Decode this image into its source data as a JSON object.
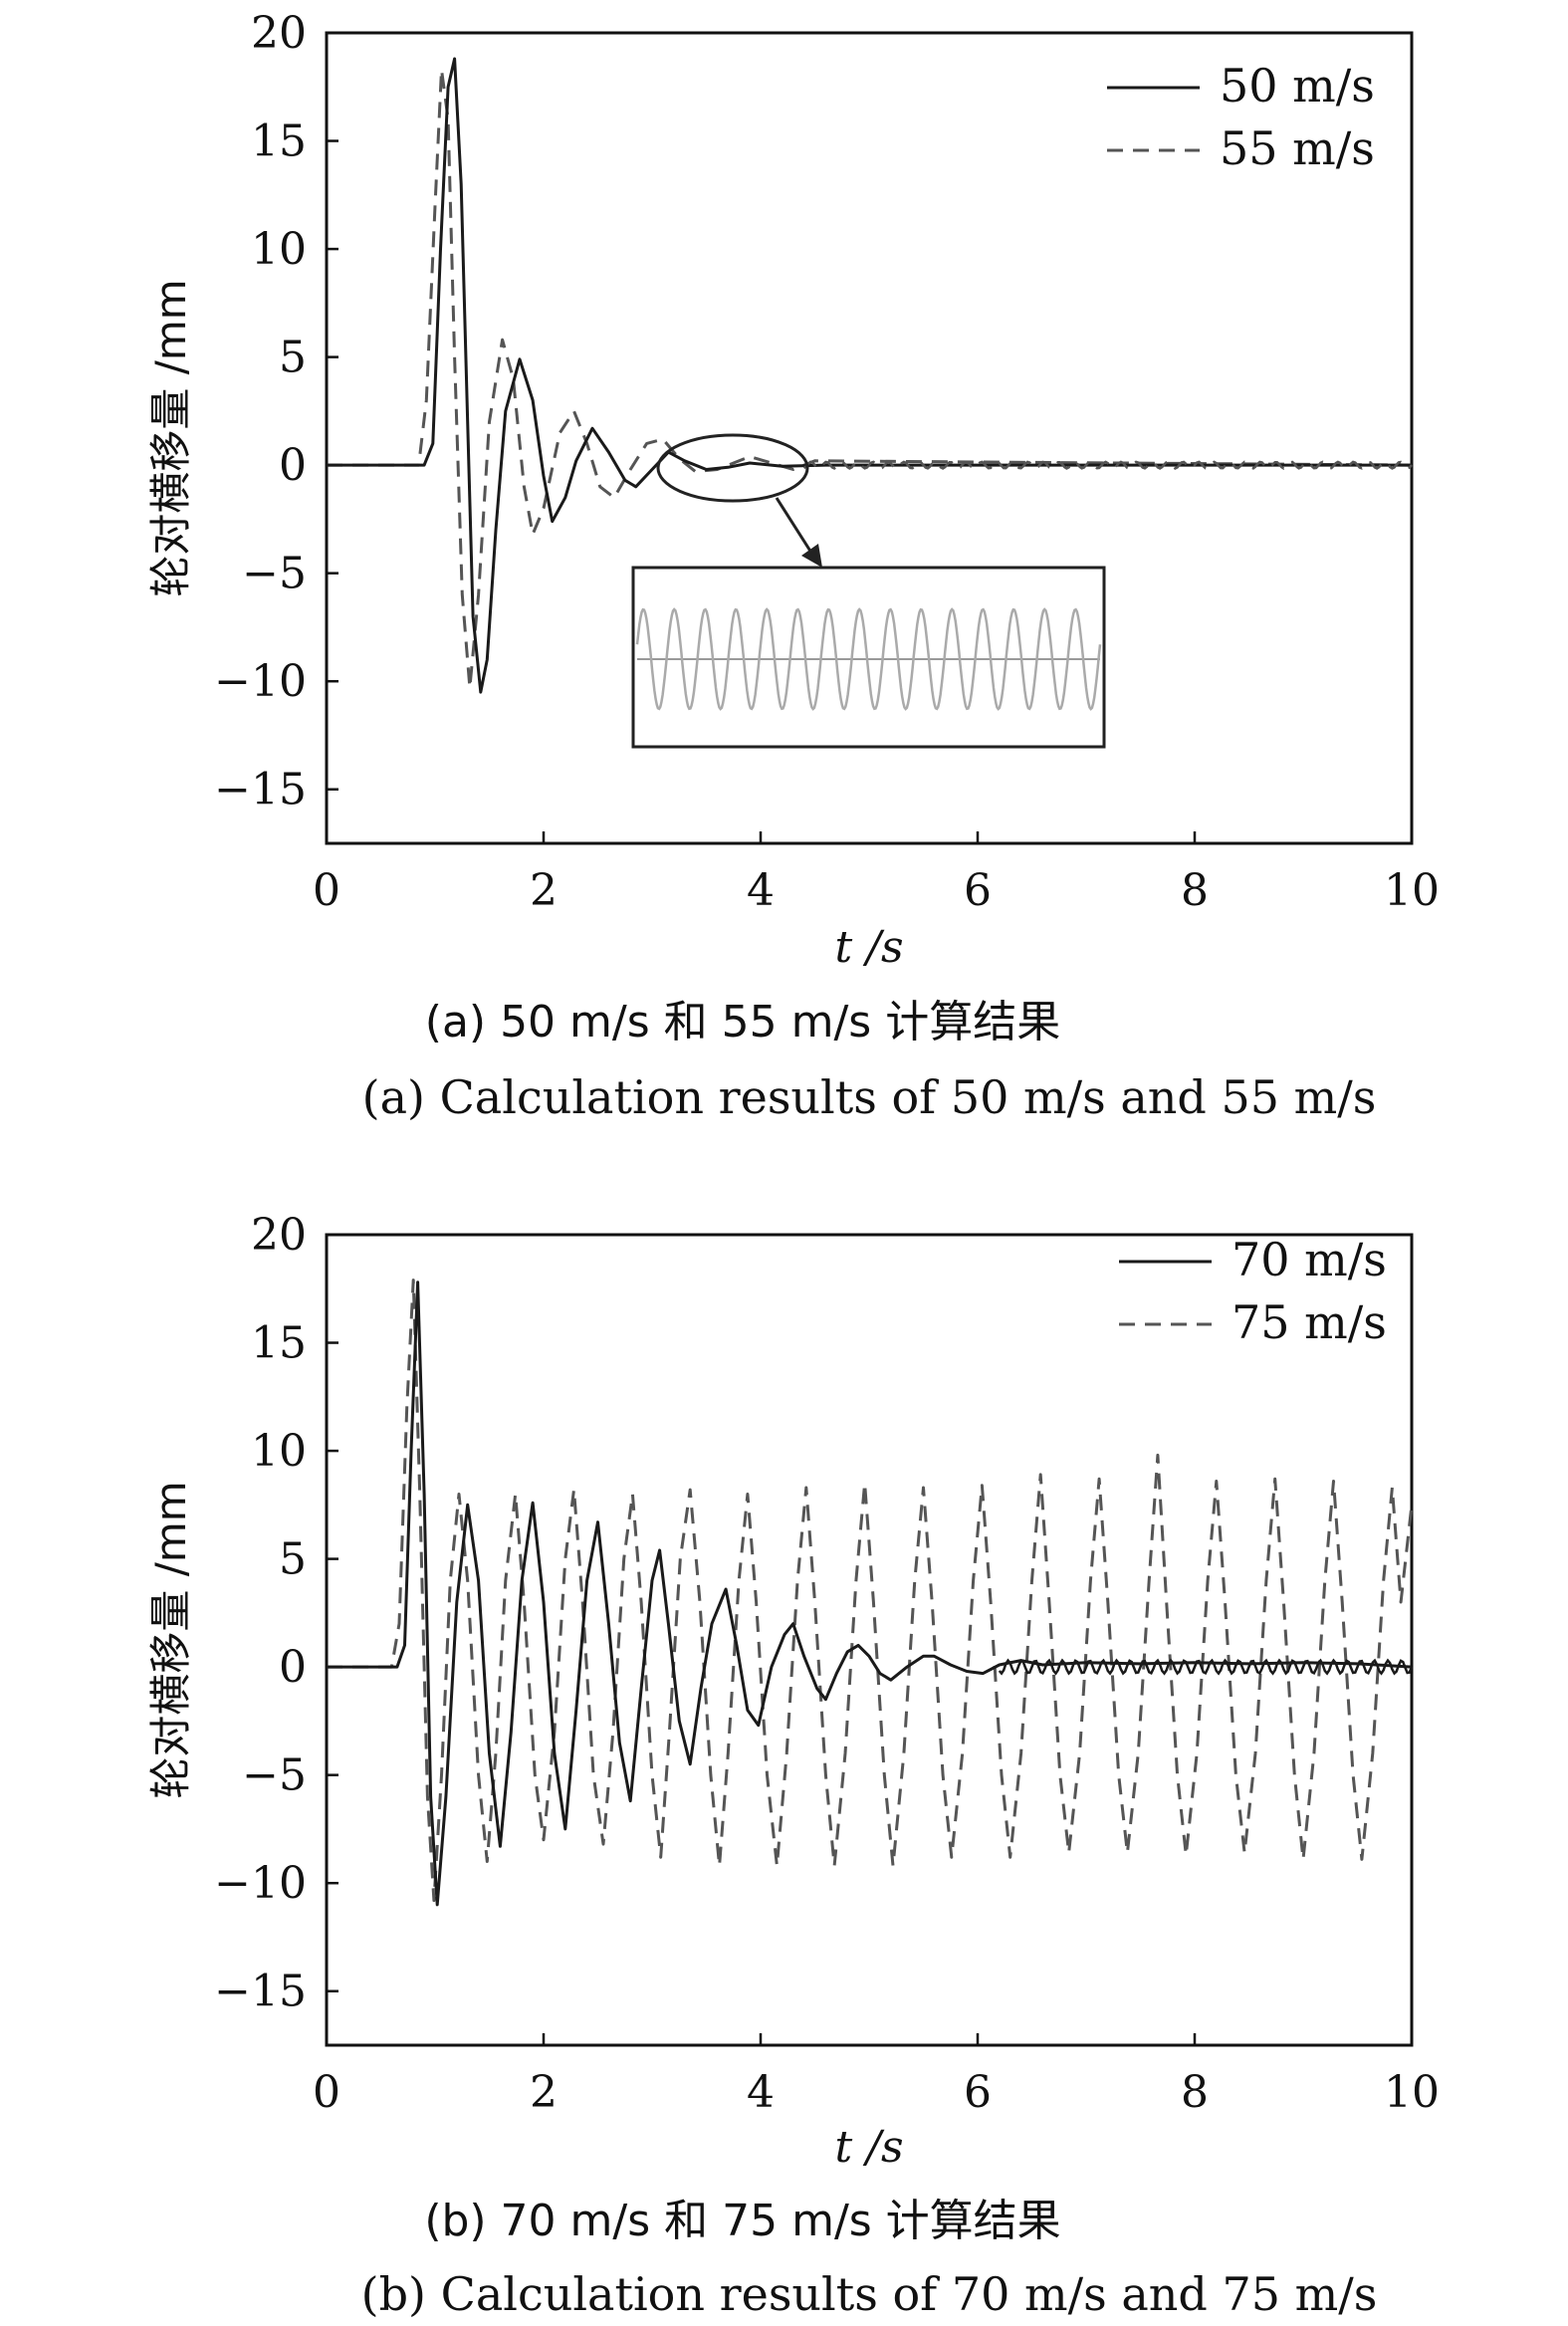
{
  "chart_data": [
    {
      "type": "line",
      "xlabel": "t /s",
      "ylabel": "轮对横移量 /mm",
      "xlim": [
        0,
        10
      ],
      "ylim": [
        -17.5,
        20
      ],
      "xticks": [
        0,
        2,
        4,
        6,
        8,
        10
      ],
      "yticks": [
        -15,
        -10,
        -5,
        0,
        5,
        10,
        15,
        20
      ],
      "legend_position": "top-right",
      "caption_cn": "(a) 50 m/s 和 55 m/s 计算结果",
      "caption_en": "(a) Calculation results of 50 m/s and 55 m/s",
      "grid": false,
      "inset": true,
      "series": [
        {
          "name": "50 m/s",
          "style": "solid",
          "color": "#1a1a1a",
          "points": [
            [
              0,
              0
            ],
            [
              0.9,
              0
            ],
            [
              0.98,
              1
            ],
            [
              1.05,
              10
            ],
            [
              1.12,
              17.5
            ],
            [
              1.18,
              18.8
            ],
            [
              1.24,
              13
            ],
            [
              1.3,
              2
            ],
            [
              1.35,
              -7
            ],
            [
              1.42,
              -10.5
            ],
            [
              1.48,
              -9
            ],
            [
              1.56,
              -3
            ],
            [
              1.65,
              2.5
            ],
            [
              1.78,
              4.9
            ],
            [
              1.9,
              3
            ],
            [
              2.0,
              -0.5
            ],
            [
              2.08,
              -2.6
            ],
            [
              2.2,
              -1.5
            ],
            [
              2.3,
              0.2
            ],
            [
              2.45,
              1.7
            ],
            [
              2.6,
              0.6
            ],
            [
              2.75,
              -0.7
            ],
            [
              2.85,
              -1
            ],
            [
              3.0,
              -0.2
            ],
            [
              3.15,
              0.6
            ],
            [
              3.3,
              0.2
            ],
            [
              3.5,
              -0.2
            ],
            [
              3.7,
              -0.1
            ],
            [
              3.9,
              0.1
            ],
            [
              4.2,
              -0.05
            ],
            [
              4.6,
              0
            ],
            [
              10,
              0
            ]
          ]
        },
        {
          "name": "55 m/s",
          "style": "dashed",
          "color": "#555555",
          "points": [
            [
              0,
              0
            ],
            [
              0.85,
              0
            ],
            [
              0.92,
              3
            ],
            [
              1.0,
              12
            ],
            [
              1.06,
              18.3
            ],
            [
              1.12,
              16
            ],
            [
              1.18,
              5
            ],
            [
              1.25,
              -6
            ],
            [
              1.32,
              -10.3
            ],
            [
              1.4,
              -6
            ],
            [
              1.5,
              2
            ],
            [
              1.62,
              5.8
            ],
            [
              1.72,
              4
            ],
            [
              1.82,
              -1
            ],
            [
              1.9,
              -3.2
            ],
            [
              2.0,
              -2
            ],
            [
              2.15,
              1.5
            ],
            [
              2.28,
              2.5
            ],
            [
              2.4,
              1
            ],
            [
              2.52,
              -1
            ],
            [
              2.65,
              -1.5
            ],
            [
              2.8,
              -0.2
            ],
            [
              2.95,
              1.0
            ],
            [
              3.1,
              1.2
            ],
            [
              3.25,
              0.3
            ],
            [
              3.4,
              -0.3
            ],
            [
              3.6,
              -0.2
            ],
            [
              3.75,
              0.1
            ],
            [
              3.9,
              0.4
            ],
            [
              4.1,
              0.1
            ],
            [
              4.3,
              -0.2
            ],
            [
              4.5,
              0.2
            ],
            [
              10,
              0
            ]
          ]
        }
      ]
    },
    {
      "type": "line",
      "xlabel": "t /s",
      "ylabel": "轮对横移量 /mm",
      "xlim": [
        0,
        10
      ],
      "ylim": [
        -17.5,
        20
      ],
      "xticks": [
        0,
        2,
        4,
        6,
        8,
        10
      ],
      "yticks": [
        -15,
        -10,
        -5,
        0,
        5,
        10,
        15,
        20
      ],
      "legend_position": "top-right",
      "caption_cn": "(b) 70 m/s 和 75 m/s 计算结果",
      "caption_en": "(b) Calculation results of 70 m/s and 75 m/s",
      "grid": false,
      "series": [
        {
          "name": "70 m/s",
          "style": "solid",
          "color": "#1a1a1a",
          "points": [
            [
              0,
              0
            ],
            [
              0.65,
              0
            ],
            [
              0.72,
              1
            ],
            [
              0.78,
              10
            ],
            [
              0.84,
              17.8
            ],
            [
              0.9,
              8
            ],
            [
              0.96,
              -6
            ],
            [
              1.02,
              -11
            ],
            [
              1.1,
              -6
            ],
            [
              1.2,
              3
            ],
            [
              1.3,
              7.5
            ],
            [
              1.4,
              4
            ],
            [
              1.5,
              -4
            ],
            [
              1.6,
              -8.3
            ],
            [
              1.7,
              -3
            ],
            [
              1.8,
              4
            ],
            [
              1.9,
              7.6
            ],
            [
              2.0,
              3
            ],
            [
              2.1,
              -4
            ],
            [
              2.2,
              -7.5
            ],
            [
              2.3,
              -2
            ],
            [
              2.4,
              4
            ],
            [
              2.5,
              6.7
            ],
            [
              2.6,
              2
            ],
            [
              2.7,
              -3.5
            ],
            [
              2.8,
              -6.2
            ],
            [
              2.9,
              -1
            ],
            [
              3.0,
              4
            ],
            [
              3.07,
              5.4
            ],
            [
              3.15,
              2
            ],
            [
              3.25,
              -2.5
            ],
            [
              3.35,
              -4.5
            ],
            [
              3.45,
              -1
            ],
            [
              3.55,
              2
            ],
            [
              3.68,
              3.6
            ],
            [
              3.78,
              1
            ],
            [
              3.88,
              -2
            ],
            [
              3.98,
              -2.7
            ],
            [
              4.1,
              0
            ],
            [
              4.22,
              1.5
            ],
            [
              4.3,
              2
            ],
            [
              4.4,
              0.5
            ],
            [
              4.52,
              -1
            ],
            [
              4.6,
              -1.5
            ],
            [
              4.7,
              -0.3
            ],
            [
              4.8,
              0.7
            ],
            [
              4.9,
              1
            ],
            [
              5.0,
              0.5
            ],
            [
              5.1,
              -0.3
            ],
            [
              5.2,
              -0.6
            ],
            [
              5.35,
              0
            ],
            [
              5.5,
              0.5
            ],
            [
              5.6,
              0.5
            ],
            [
              5.75,
              0.1
            ],
            [
              5.9,
              -0.2
            ],
            [
              6.05,
              -0.3
            ],
            [
              6.2,
              0.1
            ],
            [
              6.4,
              0.3
            ],
            [
              6.6,
              0.1
            ],
            [
              7.0,
              0.2
            ],
            [
              7.5,
              0.15
            ],
            [
              8.0,
              0.2
            ],
            [
              8.5,
              0.15
            ],
            [
              9.0,
              0.2
            ],
            [
              9.5,
              0.15
            ],
            [
              10,
              0
            ]
          ]
        },
        {
          "name": "75 m/s",
          "style": "dashed",
          "color": "#555555",
          "points": [
            [
              0,
              0
            ],
            [
              0.6,
              0
            ],
            [
              0.67,
              2
            ],
            [
              0.74,
              12
            ],
            [
              0.8,
              17.9
            ],
            [
              0.86,
              8
            ],
            [
              0.93,
              -6
            ],
            [
              0.99,
              -10.8
            ],
            [
              1.06,
              -5
            ],
            [
              1.14,
              4
            ],
            [
              1.22,
              8
            ],
            [
              1.3,
              4
            ],
            [
              1.4,
              -5
            ],
            [
              1.48,
              -9
            ],
            [
              1.56,
              -4
            ],
            [
              1.65,
              4
            ],
            [
              1.74,
              8
            ],
            [
              1.82,
              3
            ],
            [
              1.92,
              -5
            ],
            [
              2.0,
              -8
            ],
            [
              2.1,
              -3
            ],
            [
              2.2,
              5
            ],
            [
              2.28,
              8.2
            ],
            [
              2.36,
              3
            ],
            [
              2.46,
              -5
            ],
            [
              2.55,
              -8.2
            ],
            [
              2.64,
              -3
            ],
            [
              2.74,
              5
            ],
            [
              2.82,
              8
            ],
            [
              2.9,
              3
            ],
            [
              3.0,
              -5
            ],
            [
              3.08,
              -8.8
            ],
            [
              3.16,
              -3
            ],
            [
              3.26,
              5
            ],
            [
              3.35,
              8.2
            ],
            [
              3.44,
              3
            ],
            [
              3.54,
              -5
            ],
            [
              3.62,
              -9.2
            ],
            [
              3.7,
              -4
            ],
            [
              3.8,
              4
            ],
            [
              3.88,
              8
            ],
            [
              3.96,
              3
            ],
            [
              4.06,
              -5
            ],
            [
              4.15,
              -9.2
            ],
            [
              4.24,
              -4
            ],
            [
              4.34,
              4
            ],
            [
              4.42,
              8.3
            ],
            [
              4.5,
              3
            ],
            [
              4.6,
              -5
            ],
            [
              4.68,
              -9.2
            ],
            [
              4.78,
              -4
            ],
            [
              4.88,
              4
            ],
            [
              4.96,
              8.5
            ],
            [
              5.04,
              3
            ],
            [
              5.14,
              -5
            ],
            [
              5.22,
              -9.2
            ],
            [
              5.32,
              -4
            ],
            [
              5.42,
              4
            ],
            [
              5.5,
              8.3
            ],
            [
              5.58,
              3
            ],
            [
              5.68,
              -5
            ],
            [
              5.76,
              -8.8
            ],
            [
              5.86,
              -4
            ],
            [
              5.96,
              4
            ],
            [
              6.04,
              8.4
            ],
            [
              6.12,
              3
            ],
            [
              6.22,
              -5
            ],
            [
              6.3,
              -8.8
            ],
            [
              6.4,
              -4
            ],
            [
              6.5,
              4
            ],
            [
              6.58,
              8.9
            ],
            [
              6.66,
              3
            ],
            [
              6.76,
              -5
            ],
            [
              6.84,
              -8.6
            ],
            [
              6.94,
              -4
            ],
            [
              7.04,
              4
            ],
            [
              7.12,
              8.7
            ],
            [
              7.2,
              3
            ],
            [
              7.3,
              -5
            ],
            [
              7.38,
              -8.6
            ],
            [
              7.48,
              -4
            ],
            [
              7.58,
              4
            ],
            [
              7.66,
              9.8
            ],
            [
              7.74,
              3
            ],
            [
              7.84,
              -5
            ],
            [
              7.92,
              -8.7
            ],
            [
              8.02,
              -4
            ],
            [
              8.12,
              4
            ],
            [
              8.2,
              8.6
            ],
            [
              8.28,
              3
            ],
            [
              8.38,
              -5
            ],
            [
              8.46,
              -8.6
            ],
            [
              8.56,
              -4
            ],
            [
              8.66,
              4
            ],
            [
              8.74,
              8.7
            ],
            [
              8.82,
              3
            ],
            [
              8.92,
              -5
            ],
            [
              9.0,
              -8.9
            ],
            [
              9.1,
              -4
            ],
            [
              9.2,
              4
            ],
            [
              9.28,
              8.6
            ],
            [
              9.36,
              3
            ],
            [
              9.46,
              -5
            ],
            [
              9.54,
              -8.9
            ],
            [
              9.64,
              -4
            ],
            [
              9.74,
              4
            ],
            [
              9.82,
              8.3
            ],
            [
              9.9,
              3
            ],
            [
              10,
              7.5
            ]
          ]
        }
      ]
    }
  ]
}
